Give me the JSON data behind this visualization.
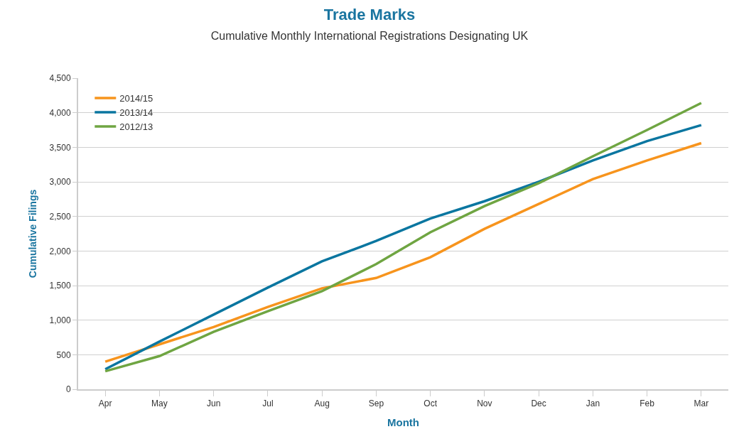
{
  "chart_data": {
    "type": "line",
    "title": "Trade Marks",
    "subtitle": "Cumulative Monthly International Registrations Designating UK",
    "xlabel": "Month",
    "ylabel": "Cumulative Filings",
    "categories": [
      "Apr",
      "May",
      "Jun",
      "Jul",
      "Aug",
      "Sep",
      "Oct",
      "Nov",
      "Dec",
      "Jan",
      "Feb",
      "Mar"
    ],
    "series": [
      {
        "name": "2014/15",
        "color": "#f7941d",
        "values": [
          400,
          650,
          900,
          1190,
          1460,
          1610,
          1910,
          2320,
          2680,
          3040,
          3310,
          3560
        ]
      },
      {
        "name": "2013/14",
        "color": "#0a76a0",
        "values": [
          290,
          690,
          1080,
          1470,
          1850,
          2145,
          2470,
          2720,
          3000,
          3310,
          3590,
          3820
        ]
      },
      {
        "name": "2012/13",
        "color": "#6fa542",
        "values": [
          260,
          480,
          830,
          1130,
          1420,
          1810,
          2270,
          2650,
          2980,
          3370,
          3750,
          4140
        ]
      }
    ],
    "ylim": [
      0,
      4500
    ],
    "yticks": [
      0,
      {
        "value": 500,
        "label": "500"
      },
      {
        "value": 1000,
        "label": "1,000"
      },
      {
        "value": 1500,
        "label": "1,500"
      },
      {
        "value": 2000,
        "label": "2,000"
      },
      {
        "value": 2500,
        "label": "2,500"
      },
      {
        "value": 3000,
        "label": "3,000"
      },
      {
        "value": 3500,
        "label": "3,500"
      },
      {
        "value": 4000,
        "label": "4,000"
      },
      {
        "value": 4500,
        "label": "4,500"
      }
    ],
    "grid": "y",
    "legend": "top left",
    "marker": "none",
    "line_style": "solid"
  }
}
